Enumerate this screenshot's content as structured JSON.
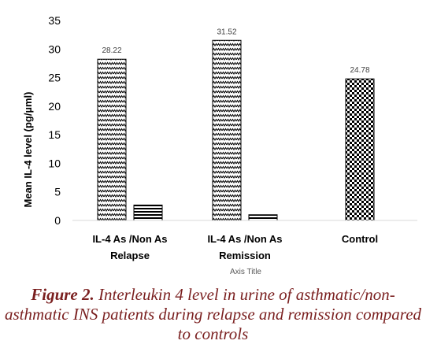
{
  "chart_data": {
    "type": "bar",
    "categories": [
      [
        "IL-4  As /Non As",
        "Relapse"
      ],
      [
        "IL-4 As /Non As",
        "Remission"
      ],
      [
        "Control"
      ]
    ],
    "series": [
      {
        "pattern": "zigzag",
        "values": [
          28.22,
          31.52,
          null
        ]
      },
      {
        "pattern": "horizontal-stripes",
        "values": [
          2.7,
          1.0,
          null
        ]
      },
      {
        "pattern": "checker",
        "values": [
          null,
          null,
          24.78
        ]
      }
    ],
    "data_labels": [
      "28.22",
      "31.52",
      "24.78"
    ],
    "ylabel": "Mean IL-4 level (pg/µml)",
    "xlabel": "Axis Title",
    "ylim": [
      0,
      35
    ],
    "yticks": [
      0,
      5,
      10,
      15,
      20,
      25,
      30,
      35
    ],
    "grid": false
  },
  "caption": {
    "lead": "Figure 2.",
    "text": "Interleukin 4 level in urine of asthmatic/non-asthmatic INS patients during relapse and remission compared to controls"
  }
}
